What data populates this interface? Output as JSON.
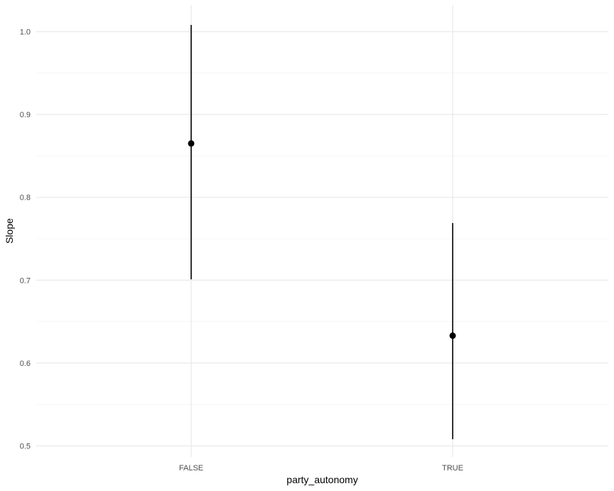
{
  "chart_data": {
    "type": "pointrange",
    "categories": [
      "FALSE",
      "TRUE"
    ],
    "series": [
      {
        "points": [
          {
            "x": "FALSE",
            "y": 0.865,
            "ymin": 0.701,
            "ymax": 1.008
          },
          {
            "x": "TRUE",
            "y": 0.633,
            "ymin": 0.508,
            "ymax": 0.769
          }
        ]
      }
    ],
    "title": "",
    "xlabel": "party_autonomy",
    "ylabel": "Slope",
    "ylim": [
      0.5,
      1.0
    ],
    "yticks": [
      0.5,
      0.6,
      0.7,
      0.8,
      0.9,
      1.0
    ],
    "ytick_labels": [
      "0.5",
      "0.6",
      "0.7",
      "0.8",
      "0.9",
      "1.0"
    ],
    "grid": true,
    "legend": "none",
    "colors": {
      "point": "#000000",
      "grid": "#ebebeb",
      "tick_label": "#4d4d4d"
    }
  }
}
